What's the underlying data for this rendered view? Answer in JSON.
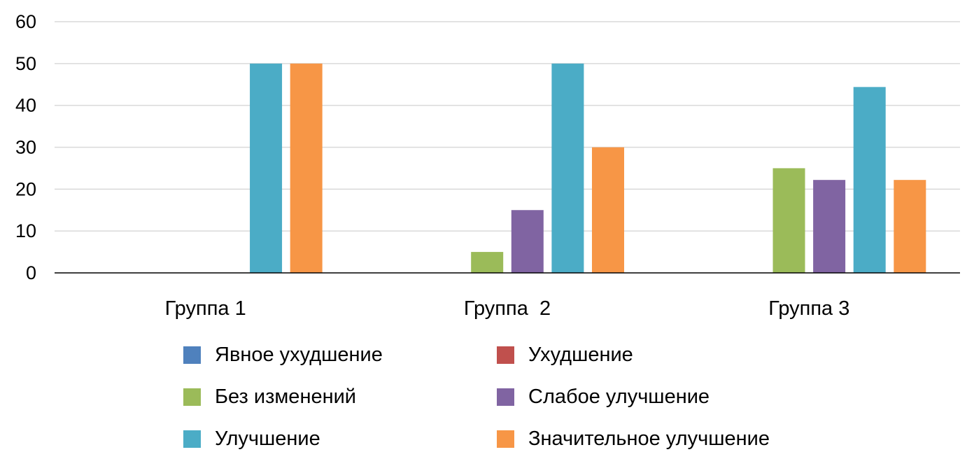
{
  "chart_data": {
    "type": "bar",
    "title": "",
    "xlabel": "",
    "ylabel": "",
    "categories": [
      "Группа 1",
      "Группа  2",
      "Группа 3"
    ],
    "ylim": [
      0,
      60
    ],
    "yticks": [
      "0",
      "10",
      "20",
      "30",
      "40",
      "50",
      "60"
    ],
    "grid": true,
    "legend_position": "bottom",
    "series": [
      {
        "name": "Явное ухудшение",
        "color": "#4F81BD",
        "values": [
          0,
          0,
          0
        ]
      },
      {
        "name": "Ухудшение",
        "color": "#C0504D",
        "values": [
          0,
          0,
          0
        ]
      },
      {
        "name": "Без изменений",
        "color": "#9BBB59",
        "values": [
          0,
          5,
          25
        ]
      },
      {
        "name": "Слабое улучшение",
        "color": "#8064A2",
        "values": [
          0,
          15,
          22.2
        ]
      },
      {
        "name": "Улучшение",
        "color": "#4BACC6",
        "values": [
          50,
          50,
          44.4
        ]
      },
      {
        "name": "Значительное улучшение",
        "color": "#F79646",
        "values": [
          50,
          30,
          22.2
        ]
      }
    ]
  }
}
